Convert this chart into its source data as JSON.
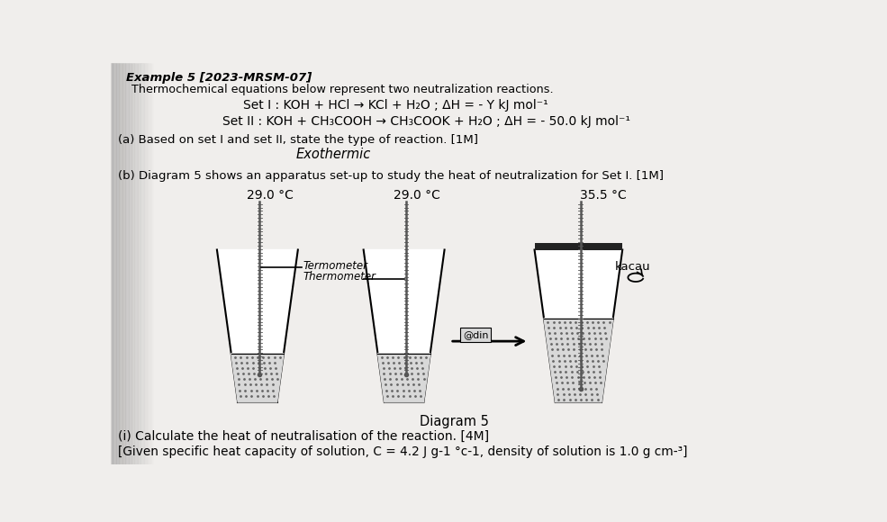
{
  "title_bold": "Example 5 [2023-MRSM-07]",
  "line1": "Thermochemical equations below represent two neutralization reactions.",
  "set1": "Set I : KOH + HCl → KCl + H₂O ; ΔH = - Y kJ mol⁻¹",
  "set2": "Set II : KOH + CH₃COOH → CH₃COOK + H₂O ; ΔH = - 50.0 kJ mol⁻¹",
  "part_a": "(a) Based on set I and set II, state the type of reaction. [1M]",
  "answer_a": "Exothermic",
  "part_b": "(b) Diagram 5 shows an apparatus set-up to study the heat of neutralization for Set I. [1M]",
  "temp1": "29.0 °C",
  "temp2": "29.0 °C",
  "temp3": "35.5 °C",
  "label_termometer": "Termometer",
  "label_thermometer": "Thermometer",
  "label_kacau": "kacau",
  "label_adin": "@din",
  "diagram_label": "Diagram 5",
  "part_i": "(i) Calculate the heat of neutralisation of the reaction. [4M]",
  "given": "[Given specific heat capacity of solution, C = 4.2 J g-1 °c-1, density of solution is 1.0 g cm-³]",
  "bg_color": "#f0eeec",
  "text_color": "#000000"
}
